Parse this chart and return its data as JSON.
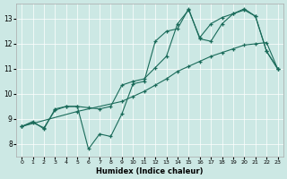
{
  "xlabel": "Humidex (Indice chaleur)",
  "bg_color": "#cce8e4",
  "line_color": "#1a6b5a",
  "x_min": -0.5,
  "x_max": 23.5,
  "y_min": 7.5,
  "y_max": 13.6,
  "line1_x": [
    0,
    1,
    2,
    3,
    4,
    5,
    6,
    7,
    8,
    9,
    10,
    11,
    12,
    13,
    14,
    15,
    16,
    17,
    18,
    19,
    20,
    21,
    22,
    23
  ],
  "line1_y": [
    8.7,
    8.9,
    8.6,
    9.4,
    9.5,
    9.5,
    7.8,
    8.4,
    8.3,
    9.2,
    10.4,
    10.5,
    12.1,
    12.5,
    12.6,
    13.4,
    12.2,
    12.1,
    12.8,
    13.2,
    13.4,
    13.1,
    11.7,
    11.0
  ],
  "line2_x": [
    0,
    1,
    2,
    3,
    4,
    5,
    6,
    7,
    8,
    9,
    10,
    11,
    12,
    13,
    14,
    15,
    16,
    17,
    18,
    19,
    20,
    21,
    22,
    23
  ],
  "line2_y": [
    8.7,
    8.85,
    8.65,
    9.35,
    9.5,
    9.5,
    9.45,
    9.4,
    9.5,
    10.35,
    10.5,
    10.6,
    11.05,
    11.5,
    12.8,
    13.35,
    12.25,
    12.8,
    13.05,
    13.2,
    13.35,
    13.1,
    11.7,
    11.0
  ],
  "line3_x": [
    0,
    5,
    9,
    10,
    11,
    12,
    13,
    14,
    15,
    16,
    17,
    18,
    19,
    20,
    21,
    22,
    23
  ],
  "line3_y": [
    8.7,
    9.3,
    9.7,
    9.9,
    10.1,
    10.35,
    10.6,
    10.9,
    11.1,
    11.3,
    11.5,
    11.65,
    11.8,
    11.95,
    12.0,
    12.05,
    11.0
  ],
  "yticks": [
    8,
    9,
    10,
    11,
    12,
    13
  ],
  "xticks": [
    0,
    1,
    2,
    3,
    4,
    5,
    6,
    7,
    8,
    9,
    10,
    11,
    12,
    13,
    14,
    15,
    16,
    17,
    18,
    19,
    20,
    21,
    22,
    23
  ]
}
